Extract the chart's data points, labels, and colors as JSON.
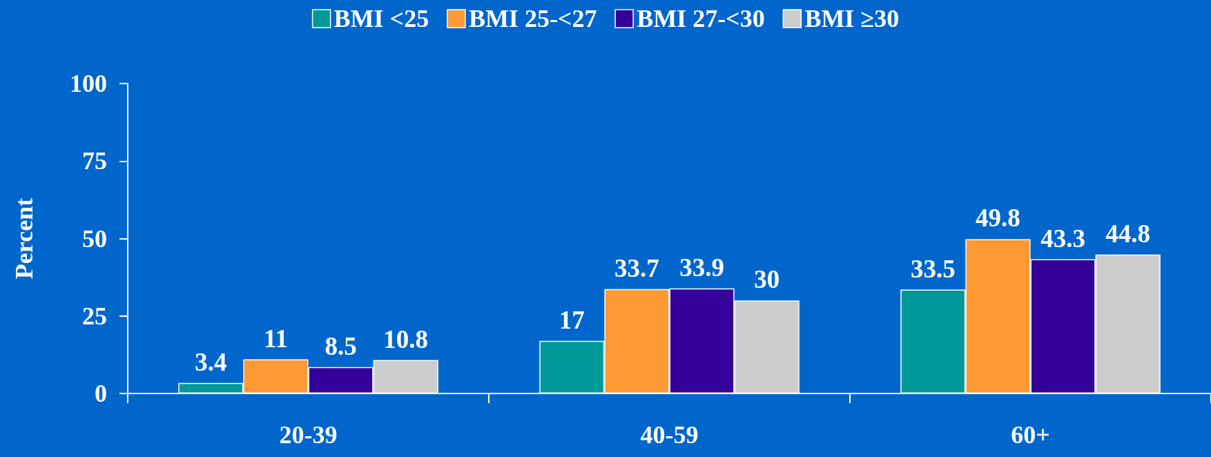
{
  "chart_data": {
    "type": "bar",
    "ylabel": "Percent",
    "categories": [
      "20-39",
      "40-59",
      "60+"
    ],
    "series": [
      {
        "name": "BMI <25",
        "color": "#009999",
        "values": [
          3.4,
          17,
          33.5
        ]
      },
      {
        "name": "BMI 25-<27",
        "color": "#ff9933",
        "values": [
          11,
          33.7,
          49.8
        ]
      },
      {
        "name": "BMI 27-<30",
        "color": "#330099",
        "values": [
          8.5,
          33.9,
          43.3
        ]
      },
      {
        "name": "BMI ≥30",
        "color": "#cccccc",
        "values": [
          10.8,
          30,
          44.8
        ]
      }
    ],
    "ylim": [
      0,
      100
    ],
    "yticks": [
      0,
      25,
      50,
      75,
      100
    ],
    "grid": false,
    "legend": "top",
    "data_labels": true
  }
}
